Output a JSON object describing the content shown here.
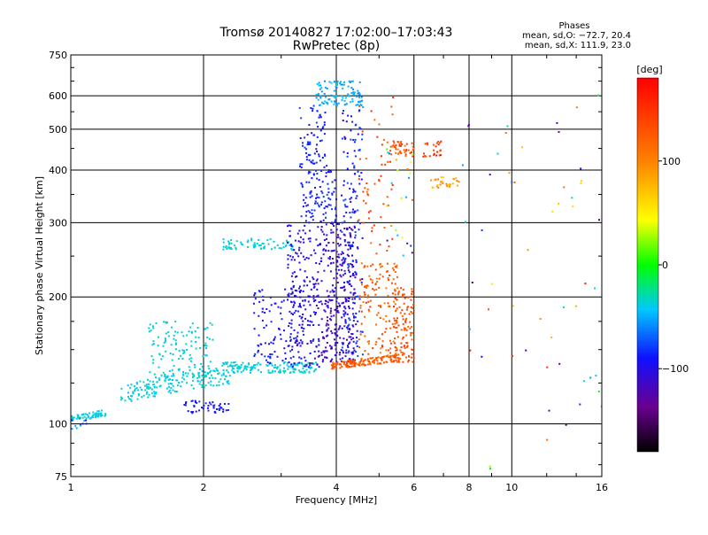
{
  "chart_data": {
    "type": "scatter",
    "title": "Tromsø 20140827 17:02:00–17:03:43",
    "subtitle": "RwPretec (8p)",
    "info": {
      "heading": "Phases",
      "line1": "mean, sd,O: −72.7, 20.4",
      "line2": "mean, sd,X: 111.9, 23.0"
    },
    "xlabel": "Frequency [MHz]",
    "ylabel": "Stationary phase Virtual Height [km]",
    "x_scale": "log",
    "y_scale": "log",
    "xlim": [
      1,
      16
    ],
    "ylim": [
      75,
      750
    ],
    "grid": true,
    "x_ticks": [
      {
        "value": 1,
        "label": "1"
      },
      {
        "value": 2,
        "label": "2"
      },
      {
        "value": 4,
        "label": "4"
      },
      {
        "value": 6,
        "label": "6"
      },
      {
        "value": 8,
        "label": "8"
      },
      {
        "value": 10,
        "label": "10"
      },
      {
        "value": 16,
        "label": "16"
      }
    ],
    "y_ticks": [
      {
        "value": 75,
        "label": "75"
      },
      {
        "value": 100,
        "label": "100"
      },
      {
        "value": 200,
        "label": "200"
      },
      {
        "value": 300,
        "label": "300"
      },
      {
        "value": 400,
        "label": "400"
      },
      {
        "value": 500,
        "label": "500"
      },
      {
        "value": 600,
        "label": "600"
      },
      {
        "value": 750,
        "label": "750"
      }
    ],
    "colorbar": {
      "label": "[deg]",
      "range": [
        -180,
        180
      ],
      "ticks": [
        {
          "value": 100,
          "label": "100"
        },
        {
          "value": 0,
          "label": "0"
        },
        {
          "value": -100,
          "label": "−100"
        }
      ]
    },
    "clusters": [
      {
        "f": [
          1.0,
          1.2
        ],
        "h": [
          101,
          108
        ],
        "phase": [
          -45,
          -30
        ],
        "n": 60,
        "shape": "band"
      },
      {
        "f": [
          1.0,
          1.1
        ],
        "h": [
          97,
          103
        ],
        "phase": [
          -100,
          -40
        ],
        "n": 12,
        "shape": "box"
      },
      {
        "f": [
          1.3,
          2.3
        ],
        "h": [
          112,
          138
        ],
        "phase": [
          -45,
          -30
        ],
        "n": 170,
        "shape": "band"
      },
      {
        "f": [
          1.5,
          2.1
        ],
        "h": [
          128,
          175
        ],
        "phase": [
          -45,
          -30
        ],
        "n": 130,
        "shape": "box"
      },
      {
        "f": [
          1.8,
          2.3
        ],
        "h": [
          106,
          114
        ],
        "phase": [
          -100,
          -80
        ],
        "n": 50,
        "shape": "box"
      },
      {
        "f": [
          2.2,
          3.6
        ],
        "h": [
          132,
          140
        ],
        "phase": [
          -45,
          -30
        ],
        "n": 150,
        "shape": "box"
      },
      {
        "f": [
          2.2,
          3.2
        ],
        "h": [
          258,
          275
        ],
        "phase": [
          -45,
          -30
        ],
        "n": 70,
        "shape": "box"
      },
      {
        "f": [
          2.6,
          3.4
        ],
        "h": [
          138,
          210
        ],
        "phase": [
          -110,
          -80
        ],
        "n": 110,
        "shape": "box"
      },
      {
        "f": [
          3.1,
          3.7
        ],
        "h": [
          135,
          300
        ],
        "phase": [
          -115,
          -90
        ],
        "n": 200,
        "shape": "box"
      },
      {
        "f": [
          3.3,
          4.0
        ],
        "h": [
          300,
          420
        ],
        "phase": [
          -100,
          -75
        ],
        "n": 110,
        "shape": "box"
      },
      {
        "f": [
          3.3,
          3.8
        ],
        "h": [
          420,
          570
        ],
        "phase": [
          -95,
          -75
        ],
        "n": 60,
        "shape": "box"
      },
      {
        "f": [
          3.6,
          4.6
        ],
        "h": [
          560,
          650
        ],
        "phase": [
          -60,
          -40
        ],
        "n": 110,
        "shape": "box"
      },
      {
        "f": [
          3.7,
          4.4
        ],
        "h": [
          140,
          300
        ],
        "phase": [
          -125,
          -100
        ],
        "n": 270,
        "shape": "box"
      },
      {
        "f": [
          4.1,
          4.6
        ],
        "h": [
          140,
          560
        ],
        "phase": [
          -110,
          -70
        ],
        "n": 190,
        "shape": "box"
      },
      {
        "f": [
          3.9,
          5.6
        ],
        "h": [
          135,
          146
        ],
        "phase": [
          110,
          140
        ],
        "n": 150,
        "shape": "band"
      },
      {
        "f": [
          4.5,
          5.5
        ],
        "h": [
          145,
          240
        ],
        "phase": [
          100,
          150
        ],
        "n": 130,
        "shape": "box"
      },
      {
        "f": [
          5.4,
          6.0
        ],
        "h": [
          140,
          210
        ],
        "phase": [
          115,
          150
        ],
        "n": 110,
        "shape": "box"
      },
      {
        "f": [
          4.5,
          5.4
        ],
        "h": [
          230,
          620
        ],
        "phase": [
          110,
          160
        ],
        "n": 60,
        "shape": "box"
      },
      {
        "f": [
          5.3,
          6.0
        ],
        "h": [
          430,
          470
        ],
        "phase": [
          110,
          150
        ],
        "n": 40,
        "shape": "box"
      },
      {
        "f": [
          5.2,
          6.0
        ],
        "h": [
          250,
          450
        ],
        "phase": [
          -130,
          120
        ],
        "n": 25,
        "shape": "box"
      },
      {
        "f": [
          6.3,
          7.0
        ],
        "h": [
          430,
          470
        ],
        "phase": [
          120,
          180
        ],
        "n": 25,
        "shape": "box"
      },
      {
        "f": [
          6.5,
          7.6
        ],
        "h": [
          360,
          385
        ],
        "phase": [
          60,
          110
        ],
        "n": 30,
        "shape": "box"
      },
      {
        "f": [
          7.6,
          16.0
        ],
        "h": [
          78,
          620
        ],
        "phase": [
          -150,
          180
        ],
        "n": 55,
        "shape": "box"
      }
    ]
  }
}
